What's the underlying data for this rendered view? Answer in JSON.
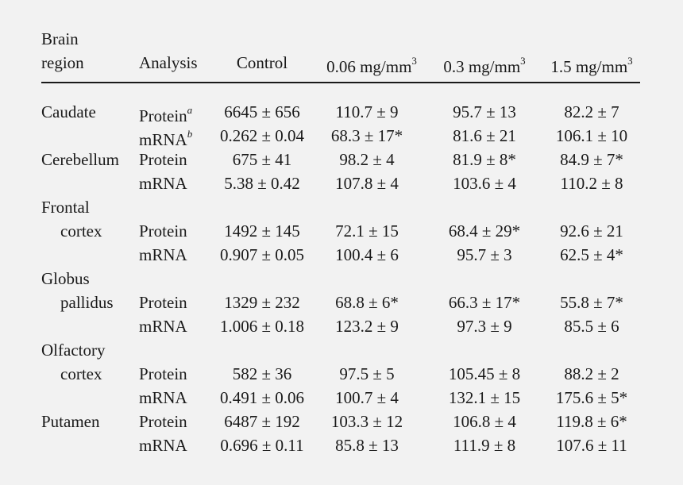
{
  "table": {
    "headers": {
      "region_line1": "Brain",
      "region_line2": "region",
      "analysis": "Analysis",
      "control": "Control",
      "dose1": "0.06 mg/mm",
      "dose2": "0.3 mg/mm",
      "dose3": "1.5 mg/mm",
      "dose_exp": "3"
    },
    "rows": [
      {
        "region": "Caudate",
        "region2": "",
        "analysis": "Protein",
        "sup": "a",
        "control": "6645 ± 656",
        "d1": "110.7 ± 9",
        "d2": "95.7 ± 13",
        "d3": "82.2 ± 7"
      },
      {
        "region": "",
        "region2": "",
        "analysis": "mRNA",
        "sup": "b",
        "control": "0.262 ± 0.04",
        "d1": "68.3 ± 17*",
        "d2": "81.6 ± 21",
        "d3": "106.1 ± 10"
      },
      {
        "region": "Cerebellum",
        "region2": "",
        "analysis": "Protein",
        "sup": "",
        "control": "675 ± 41",
        "d1": "98.2 ± 4",
        "d2": "81.9 ± 8*",
        "d3": "84.9 ± 7*"
      },
      {
        "region": "",
        "region2": "",
        "analysis": "mRNA",
        "sup": "",
        "control": "5.38 ± 0.42",
        "d1": "107.8 ± 4",
        "d2": "103.6 ± 4",
        "d3": "110.2 ± 8"
      },
      {
        "region": "Frontal",
        "region2": "cortex",
        "analysis": "Protein",
        "sup": "",
        "control": "1492 ± 145",
        "d1": "72.1 ± 15",
        "d2": "68.4 ± 29*",
        "d3": "92.6 ± 21"
      },
      {
        "region": "",
        "region2": "",
        "analysis": "mRNA",
        "sup": "",
        "control": "0.907 ± 0.05",
        "d1": "100.4 ± 6",
        "d2": "95.7 ± 3",
        "d3": "62.5 ± 4*"
      },
      {
        "region": "Globus",
        "region2": "pallidus",
        "analysis": "Protein",
        "sup": "",
        "control": "1329 ± 232",
        "d1": "68.8 ± 6*",
        "d2": "66.3 ± 17*",
        "d3": "55.8 ± 7*"
      },
      {
        "region": "",
        "region2": "",
        "analysis": "mRNA",
        "sup": "",
        "control": "1.006 ± 0.18",
        "d1": "123.2 ± 9",
        "d2": "97.3 ± 9",
        "d3": "85.5 ± 6"
      },
      {
        "region": "Olfactory",
        "region2": "cortex",
        "analysis": "Protein",
        "sup": "",
        "control": "582 ± 36",
        "d1": "97.5 ± 5",
        "d2": "105.45 ± 8",
        "d3": "88.2 ± 2"
      },
      {
        "region": "",
        "region2": "",
        "analysis": "mRNA",
        "sup": "",
        "control": "0.491 ± 0.06",
        "d1": "100.7 ± 4",
        "d2": "132.1 ± 15",
        "d3": "175.6 ± 5*"
      },
      {
        "region": "Putamen",
        "region2": "",
        "analysis": "Protein",
        "sup": "",
        "control": "6487 ± 192",
        "d1": "103.3 ± 12",
        "d2": "106.8 ± 4",
        "d3": "119.8 ± 6*"
      },
      {
        "region": "",
        "region2": "",
        "analysis": "mRNA",
        "sup": "",
        "control": "0.696 ± 0.11",
        "d1": "85.8 ± 13",
        "d2": "111.9 ± 8",
        "d3": "107.6 ± 11"
      }
    ]
  }
}
